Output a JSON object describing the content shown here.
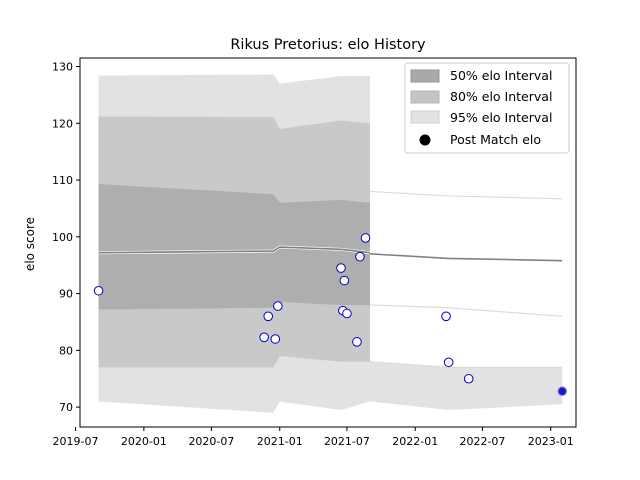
{
  "chart_data": {
    "type": "line",
    "title": "Rikus Pretorius: elo History",
    "ylabel": "elo score",
    "xlabel": "",
    "xlim": [
      "2019-07-13",
      "2023-03-10"
    ],
    "ylim": [
      66.5,
      131.5
    ],
    "x_ticks": [
      "2019-07",
      "2020-01",
      "2020-07",
      "2021-01",
      "2021-07",
      "2022-01",
      "2022-07",
      "2023-01"
    ],
    "y_ticks": [
      70,
      80,
      90,
      100,
      110,
      120,
      130
    ],
    "grid": false,
    "legend_position": "top-right",
    "legend": {
      "band_50": "50% elo Interval",
      "band_80": "80% elo Interval",
      "band_95": "95% elo Interval",
      "points": "Post Match elo"
    },
    "colors": {
      "band_50": "#a9a9a9",
      "band_80": "#c4c4c4",
      "band_95": "#e2e2e2",
      "line": "#808080",
      "point_edge": "#0000cc",
      "point_fill": "#ffffff",
      "final_point": "#1a1acc"
    },
    "rating_path": [
      {
        "date": "2019-09-01",
        "mean": 97.2,
        "lo50": 87.2,
        "hi50": 109.3,
        "lo80": 77.0,
        "hi80": 121.2,
        "lo95": 71.0,
        "hi95": 128.4
      },
      {
        "date": "2020-12-15",
        "mean": 97.5,
        "lo50": 87.5,
        "hi50": 107.5,
        "lo80": 77.0,
        "hi80": 121.1,
        "lo95": 69.0,
        "hi95": 128.6
      },
      {
        "date": "2021-01-01",
        "mean": 98.2,
        "lo50": 88.5,
        "hi50": 106.0,
        "lo80": 79.0,
        "hi80": 119.0,
        "lo95": 71.0,
        "hi95": 127.0
      },
      {
        "date": "2021-06-15",
        "mean": 97.8,
        "lo50": 88.0,
        "hi50": 106.5,
        "lo80": 78.0,
        "hi80": 120.5,
        "lo95": 69.5,
        "hi95": 128.3
      },
      {
        "date": "2021-09-01",
        "mean": 97.2,
        "lo50": 88.0,
        "hi50": 106.0,
        "lo80": 78.0,
        "hi80": 120.0,
        "lo95": 71.0,
        "hi95": 128.3
      }
    ],
    "projection": [
      {
        "date": "2021-09-01",
        "mean": 97.0,
        "lo95": 71.0,
        "hi95": 108.0,
        "lo80": 78.0,
        "lo50": 88.0
      },
      {
        "date": "2022-04-01",
        "mean": 96.2,
        "lo95": 69.5,
        "hi95": 107.2,
        "lo80": 77.0,
        "lo50": 87.5
      },
      {
        "date": "2023-02-01",
        "mean": 95.8,
        "lo95": 70.5,
        "hi95": 106.7,
        "lo80": 77.0,
        "lo50": 86.0
      }
    ],
    "points": [
      {
        "date": "2019-09-01",
        "elo": 90.5
      },
      {
        "date": "2020-11-20",
        "elo": 82.3
      },
      {
        "date": "2020-12-01",
        "elo": 86.0
      },
      {
        "date": "2020-12-20",
        "elo": 82.0
      },
      {
        "date": "2020-12-27",
        "elo": 87.8
      },
      {
        "date": "2021-06-15",
        "elo": 94.5
      },
      {
        "date": "2021-06-20",
        "elo": 87.0
      },
      {
        "date": "2021-06-24",
        "elo": 92.3
      },
      {
        "date": "2021-07-01",
        "elo": 86.5
      },
      {
        "date": "2021-07-28",
        "elo": 81.5
      },
      {
        "date": "2021-08-05",
        "elo": 96.5
      },
      {
        "date": "2021-08-20",
        "elo": 99.8
      },
      {
        "date": "2022-03-25",
        "elo": 86.0
      },
      {
        "date": "2022-04-01",
        "elo": 77.9
      },
      {
        "date": "2022-05-25",
        "elo": 75.0
      }
    ],
    "final_point": {
      "date": "2023-02-01",
      "elo": 72.8
    }
  }
}
